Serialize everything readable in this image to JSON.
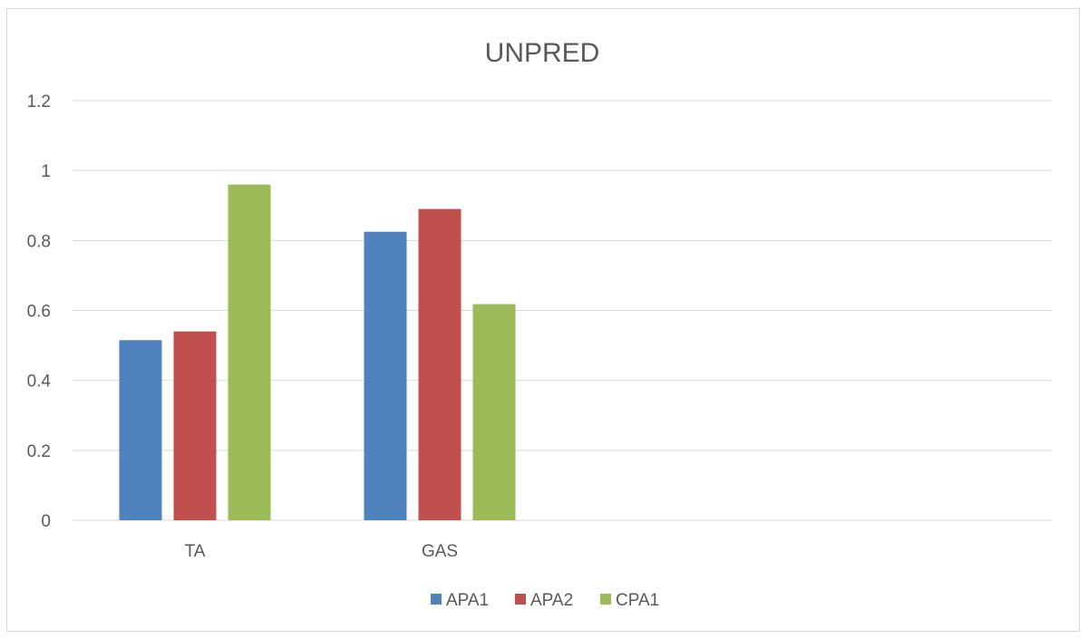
{
  "chart_data": {
    "type": "bar",
    "title": "UNPRED",
    "categories": [
      "TA",
      "GAS"
    ],
    "category_slots": 4,
    "series": [
      {
        "name": "APA1",
        "color": "#4F81BD",
        "values": [
          0.515,
          0.825
        ]
      },
      {
        "name": "APA2",
        "color": "#C0504D",
        "values": [
          0.54,
          0.89
        ]
      },
      {
        "name": "CPA1",
        "color": "#9BBB59",
        "values": [
          0.96,
          0.618
        ]
      }
    ],
    "ylim": [
      0,
      1.2
    ],
    "yticks": [
      "0",
      "0.2",
      "0.4",
      "0.6",
      "0.8",
      "1",
      "1.2"
    ],
    "grid": true,
    "legend_position": "bottom"
  }
}
